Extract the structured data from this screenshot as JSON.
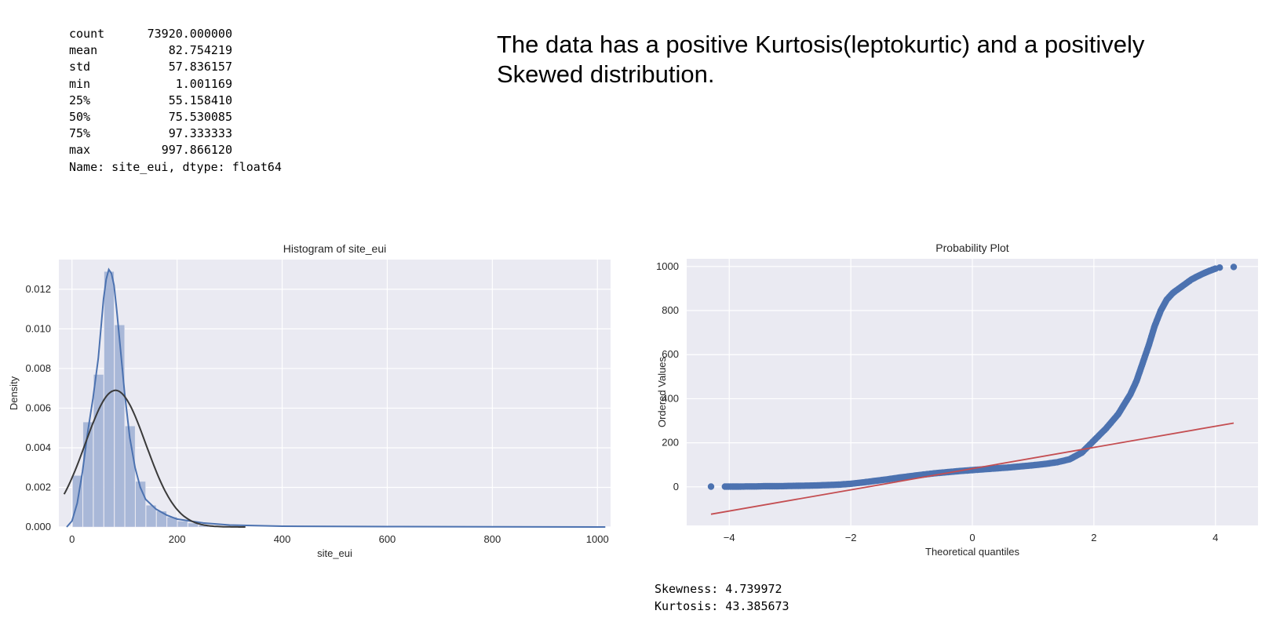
{
  "describe": {
    "rows": [
      {
        "key": "count",
        "value": "73920.000000"
      },
      {
        "key": "mean",
        "value": "82.754219"
      },
      {
        "key": "std",
        "value": "57.836157"
      },
      {
        "key": "min",
        "value": "1.001169"
      },
      {
        "key": "25%",
        "value": "55.158410"
      },
      {
        "key": "50%",
        "value": "75.530085"
      },
      {
        "key": "75%",
        "value": "97.333333"
      },
      {
        "key": "max",
        "value": "997.866120"
      }
    ],
    "footer": "Name: site_eui, dtype: float64"
  },
  "note": "The data has  a positive Kurtosis(leptokurtic) and a positively Skewed distribution.",
  "stats": {
    "skewness": "Skewness: 4.739972",
    "kurtosis": "Kurtosis: 43.385673"
  },
  "colors": {
    "panel": "#eaeaf2",
    "grid": "#ffffff",
    "bar": "#a9b8d8",
    "kde": "#4c72b0",
    "normal": "#3a3a3a",
    "points": "#4c72b0",
    "fit_line": "#c44e52"
  },
  "chart_data": [
    {
      "type": "bar",
      "title": "Histogram of site_eui",
      "xlabel": "site_eui",
      "ylabel": "Density",
      "xlim": [
        -25,
        1025
      ],
      "ylim": [
        0,
        0.0135
      ],
      "xticks": [
        0,
        200,
        400,
        600,
        800,
        1000
      ],
      "yticks": [
        0.0,
        0.002,
        0.004,
        0.006,
        0.008,
        0.01,
        0.012
      ],
      "ytick_labels": [
        "0.000",
        "0.002",
        "0.004",
        "0.006",
        "0.008",
        "0.010",
        "0.012"
      ],
      "grid": true,
      "bin_edges": [
        1,
        21,
        41,
        61,
        81,
        101,
        121,
        141,
        161,
        181,
        201,
        221,
        241,
        261,
        281,
        301,
        321
      ],
      "values": [
        0.0026,
        0.0053,
        0.0077,
        0.0129,
        0.0102,
        0.0051,
        0.0023,
        0.0011,
        0.0008,
        0.0005,
        0.0003,
        0.0002,
        0.0001,
        7e-05,
        5e-05,
        3e-05
      ],
      "series": [
        {
          "name": "kde",
          "x": [
            -10,
            0,
            10,
            20,
            30,
            40,
            50,
            60,
            65,
            70,
            75,
            80,
            85,
            90,
            100,
            110,
            120,
            130,
            140,
            160,
            180,
            200,
            250,
            300,
            400,
            600,
            800,
            1000,
            1015
          ],
          "y": [
            0.0,
            0.0003,
            0.0012,
            0.0028,
            0.0048,
            0.0065,
            0.0085,
            0.0115,
            0.0125,
            0.013,
            0.0128,
            0.0122,
            0.011,
            0.0096,
            0.0068,
            0.0045,
            0.003,
            0.002,
            0.0014,
            0.0009,
            0.0006,
            0.0004,
            0.0002,
            0.0001,
            4e-05,
            2e-05,
            1e-05,
            0.0,
            0.0
          ]
        },
        {
          "name": "normal",
          "mean": 82.754219,
          "std": 57.836157,
          "range": [
            -15,
            330
          ]
        }
      ]
    },
    {
      "type": "scatter",
      "title": "Probability Plot",
      "xlabel": "Theoretical quantiles",
      "ylabel": "Ordered Values",
      "xlim": [
        -4.7,
        4.7
      ],
      "ylim": [
        -175,
        1035
      ],
      "xticks": [
        -4,
        -2,
        0,
        2,
        4
      ],
      "yticks": [
        0,
        200,
        400,
        600,
        800,
        1000
      ],
      "grid": true,
      "points_x": [
        -4.3,
        -4.07,
        -3.95,
        -3.85,
        -3.7,
        -3.55,
        -3.4,
        -3.2,
        -3.0,
        -2.8,
        -2.6,
        -2.4,
        -2.2,
        -2.0,
        -1.8,
        -1.6,
        -1.4,
        -1.2,
        -1.0,
        -0.8,
        -0.6,
        -0.4,
        -0.2,
        0.0,
        0.2,
        0.4,
        0.6,
        0.8,
        1.0,
        1.2,
        1.4,
        1.6,
        1.8,
        2.0,
        2.2,
        2.4,
        2.6,
        2.7,
        2.8,
        2.9,
        3.0,
        3.1,
        3.2,
        3.3,
        3.4,
        3.5,
        3.6,
        3.7,
        3.8,
        3.9,
        4.0,
        4.07,
        4.3
      ],
      "points_y": [
        1,
        1,
        1,
        1,
        2,
        2,
        3,
        3,
        4,
        5,
        6,
        8,
        10,
        14,
        20,
        27,
        34,
        42,
        49,
        56,
        62,
        67,
        72,
        76,
        80,
        84,
        88,
        93,
        98,
        104,
        112,
        125,
        155,
        210,
        265,
        330,
        420,
        480,
        560,
        640,
        730,
        800,
        850,
        880,
        900,
        920,
        940,
        955,
        968,
        980,
        990,
        995,
        997.866
      ]
    }
  ],
  "fit_line": {
    "slope": 48.1,
    "intercept": 82.754
  }
}
